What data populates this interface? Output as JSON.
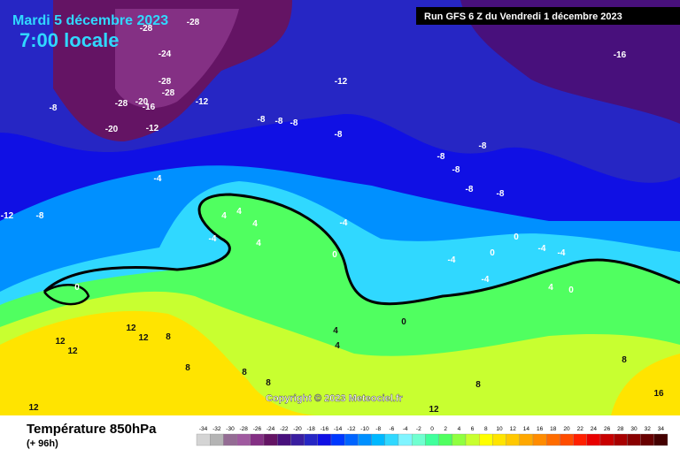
{
  "header": {
    "date": "Mardi 5 décembre 2023",
    "time": "7:00 locale",
    "run": "Run GFS 6 Z du Vendredi 1 décembre 2023"
  },
  "map": {
    "copyright": "Copyright © 2023 Meteociel.fr",
    "contour_labels": [
      "-28",
      "-28",
      "-24",
      "-28",
      "-28",
      "-28",
      "-20",
      "-16",
      "-20",
      "-12",
      "-12",
      "-12",
      "-16",
      "-8",
      "-8",
      "-8",
      "-8",
      "-8",
      "-8",
      "-8",
      "-8",
      "-8",
      "-8",
      "-4",
      "-12",
      "-8",
      "-4",
      "-4",
      "-4",
      "0",
      "0",
      "4",
      "4",
      "4",
      "4",
      "4",
      "4",
      "0",
      "-4",
      "0",
      "0",
      "-4",
      "-4",
      "0",
      "4",
      "8",
      "12",
      "12",
      "12",
      "12",
      "8",
      "8",
      "8",
      "8",
      "12",
      "12",
      "16",
      "8"
    ]
  },
  "legend": {
    "title": "Température 850hPa",
    "lead": "(+ 96h)",
    "values": [
      -34,
      -32,
      -30,
      -28,
      -26,
      -24,
      -22,
      -20,
      -18,
      -16,
      -14,
      -12,
      -10,
      -8,
      -6,
      -4,
      -2,
      0,
      2,
      4,
      6,
      8,
      10,
      12,
      14,
      16,
      18,
      20,
      22,
      24,
      26,
      28,
      30,
      32,
      34
    ],
    "colors": [
      "#d4d4d4",
      "#b4b4b4",
      "#946c94",
      "#a05aa0",
      "#843084",
      "#641464",
      "#48107c",
      "#3a1ea0",
      "#2626c4",
      "#1010e4",
      "#0038ff",
      "#0064ff",
      "#0090ff",
      "#00b8ff",
      "#30d8ff",
      "#80f4ff",
      "#70ffd0",
      "#40ff9c",
      "#50ff60",
      "#90ff40",
      "#c8ff30",
      "#ffff00",
      "#ffe400",
      "#ffc800",
      "#ffa800",
      "#ff8c00",
      "#ff6c00",
      "#ff4c00",
      "#ff2000",
      "#e80000",
      "#c80000",
      "#a80000",
      "#880000",
      "#680000",
      "#440000"
    ]
  }
}
